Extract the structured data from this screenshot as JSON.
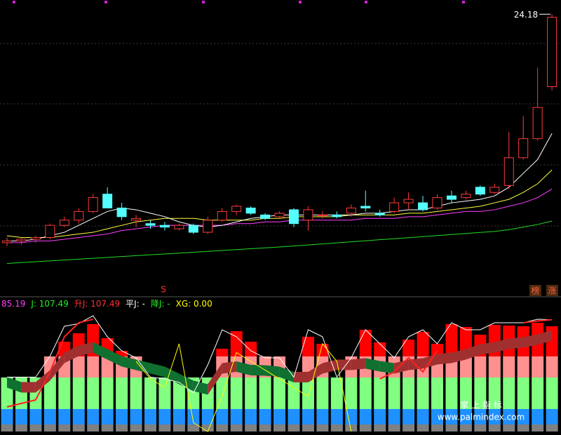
{
  "chart_data": [
    {
      "type": "candlestick",
      "ylim": [
        8,
        25
      ],
      "up_color": "#ff3b3b",
      "down_color": "#54ffff",
      "open": [
        11.0,
        11.1,
        11.2,
        11.3,
        12.0,
        12.3,
        12.8,
        13.8,
        13.0,
        12.3,
        12.1,
        12.0,
        11.8,
        12.0,
        11.6,
        12.3,
        12.8,
        13.0,
        12.6,
        12.5,
        12.9,
        12.3,
        12.6,
        12.6,
        12.7,
        13.1,
        12.7,
        12.8,
        13.3,
        13.3,
        13.0,
        13.7,
        13.6,
        14.2,
        13.9,
        14.3,
        15.9,
        17.0,
        20.0
      ],
      "high": [
        11.3,
        11.3,
        11.4,
        12.1,
        12.5,
        13.0,
        13.8,
        14.2,
        13.3,
        12.6,
        12.3,
        12.2,
        12.1,
        12.1,
        12.5,
        13.0,
        13.2,
        13.1,
        12.7,
        12.8,
        13.0,
        13.1,
        12.8,
        12.8,
        13.2,
        14.0,
        12.9,
        13.6,
        13.9,
        13.7,
        13.8,
        14.0,
        14.0,
        14.3,
        14.4,
        17.4,
        18.3,
        21.1,
        24.18
      ],
      "low": [
        10.8,
        10.9,
        11.0,
        11.2,
        11.9,
        12.1,
        12.7,
        13.0,
        12.3,
        11.9,
        11.8,
        11.7,
        11.7,
        11.5,
        11.5,
        12.2,
        12.6,
        12.6,
        12.3,
        12.4,
        11.9,
        11.7,
        12.4,
        12.4,
        12.5,
        12.8,
        12.5,
        12.7,
        12.9,
        12.8,
        12.9,
        13.3,
        13.5,
        13.7,
        13.8,
        14.1,
        15.8,
        16.9,
        19.8
      ],
      "close": [
        11.1,
        11.2,
        11.3,
        12.0,
        12.3,
        12.8,
        13.6,
        13.0,
        12.5,
        12.4,
        12.0,
        11.9,
        12.0,
        11.6,
        12.3,
        12.8,
        13.1,
        12.7,
        12.4,
        12.7,
        12.1,
        12.9,
        12.6,
        12.5,
        13.0,
        13.0,
        12.6,
        13.3,
        13.5,
        12.9,
        13.6,
        13.5,
        13.8,
        13.8,
        14.2,
        15.9,
        17.0,
        18.8,
        24.0
      ],
      "lines": [
        {
          "color": "#ffffff",
          "values": [
            11.1,
            11.1,
            11.2,
            11.4,
            11.6,
            12.0,
            12.4,
            12.8,
            13.0,
            12.9,
            12.7,
            12.5,
            12.2,
            12.0,
            11.9,
            12.0,
            12.2,
            12.4,
            12.5,
            12.6,
            12.6,
            12.6,
            12.6,
            12.6,
            12.6,
            12.7,
            12.7,
            12.8,
            12.9,
            12.9,
            13.1,
            13.3,
            13.4,
            13.5,
            13.7,
            14.2,
            15.0,
            15.8,
            17.3
          ]
        },
        {
          "color": "#ffff40",
          "values": [
            11.4,
            11.3,
            11.3,
            11.3,
            11.4,
            11.5,
            11.6,
            11.8,
            12.0,
            12.2,
            12.3,
            12.4,
            12.4,
            12.4,
            12.3,
            12.3,
            12.3,
            12.3,
            12.4,
            12.4,
            12.5,
            12.5,
            12.5,
            12.5,
            12.6,
            12.6,
            12.6,
            12.6,
            12.7,
            12.7,
            12.8,
            12.9,
            13.0,
            13.1,
            13.3,
            13.5,
            13.9,
            14.4,
            15.2
          ]
        },
        {
          "color": "#ff40ff",
          "values": [
            11.0,
            11.0,
            11.1,
            11.1,
            11.2,
            11.3,
            11.4,
            11.5,
            11.7,
            11.8,
            11.9,
            12.0,
            12.0,
            12.0,
            12.0,
            12.0,
            12.1,
            12.1,
            12.2,
            12.2,
            12.3,
            12.3,
            12.3,
            12.3,
            12.3,
            12.4,
            12.4,
            12.4,
            12.5,
            12.5,
            12.6,
            12.7,
            12.8,
            12.8,
            12.9,
            13.1,
            13.3,
            13.6,
            14.1
          ]
        },
        {
          "color": "#22dd22",
          "values": [
            9.8,
            9.85,
            9.9,
            9.95,
            10.0,
            10.05,
            10.1,
            10.15,
            10.2,
            10.25,
            10.3,
            10.35,
            10.4,
            10.45,
            10.5,
            10.55,
            10.6,
            10.65,
            10.7,
            10.75,
            10.81,
            10.87,
            10.93,
            10.99,
            11.05,
            11.11,
            11.17,
            11.23,
            11.29,
            11.35,
            11.41,
            11.47,
            11.53,
            11.59,
            11.65,
            11.75,
            11.9,
            12.05,
            12.25
          ]
        }
      ],
      "signal": "S",
      "badges": [
        "榜",
        "涨"
      ]
    },
    {
      "type": "indicator",
      "ylim": [
        -20,
        120
      ],
      "header": [
        {
          "label": "85.19",
          "color": "#ff40ff"
        },
        {
          "label": "J: 107.49",
          "color": "#22ee22"
        },
        {
          "label": "升J: 107.49",
          "color": "#ff3030"
        },
        {
          "label": "平J: -",
          "color": "#ffffff"
        },
        {
          "label": "降J: -",
          "color": "#22ee22"
        },
        {
          "label": "XG: 0.00",
          "color": "#ffff00"
        }
      ],
      "bands": [
        {
          "value": -12,
          "color": "#808080"
        },
        {
          "value": 5.6,
          "color": "#1e90ff"
        },
        {
          "value": 41.6,
          "color": "#80ff80"
        },
        {
          "value": 65.6,
          "color": "#ff9090"
        }
      ],
      "top_color": "#ff0000",
      "bars": [
        41.6,
        41.6,
        41.6,
        65.6,
        82.4,
        92,
        102.4,
        86.4,
        72,
        65.6,
        41.6,
        41.6,
        41.6,
        41.6,
        41.6,
        74.4,
        94.4,
        82.4,
        65.6,
        65.6,
        41.6,
        88,
        80,
        41.6,
        65.6,
        96,
        81.6,
        65.6,
        84.8,
        93.6,
        80,
        102.4,
        99.2,
        90.4,
        101.6,
        100.8,
        100,
        104,
        100
      ],
      "ribbon": {
        "rise_color": "#a03030",
        "fall_color": "#107030",
        "upper": [
          42,
          36.4,
          36.4,
          50,
          70,
          78,
          82,
          74,
          66,
          62,
          58,
          54,
          46,
          38,
          34,
          58,
          60,
          56,
          55.6,
          54,
          48,
          48,
          58,
          62,
          62,
          63.6,
          60.4,
          58,
          62,
          63.6,
          68.4,
          70,
          74,
          79.6,
          82,
          86,
          87.6,
          90.8,
          95.6
        ],
        "lower": [
          30,
          24.4,
          24.4,
          38,
          58,
          66,
          70,
          62,
          54,
          50,
          46,
          42,
          34,
          26,
          22,
          46,
          48,
          44,
          43.6,
          42,
          36,
          36,
          46,
          50,
          50,
          51.6,
          48.4,
          46,
          50,
          51.6,
          56.4,
          58,
          62,
          67.6,
          70,
          74,
          75.6,
          78.8,
          83.6
        ]
      },
      "lines": [
        {
          "color": "#ffffff",
          "values": [
            42,
            42,
            42,
            66,
            100,
            103,
            112,
            88,
            72,
            64,
            42,
            40,
            36,
            24,
            56,
            96,
            88,
            72,
            64,
            64,
            42,
            96,
            88,
            42,
            64,
            96,
            80,
            64,
            88,
            96,
            80,
            104,
            96,
            96,
            104,
            104,
            104,
            108,
            107.49
          ]
        },
        {
          "color": "#ff2020",
          "values": [
            8,
            12,
            16,
            48,
            88,
            104,
            108,
            null,
            null,
            null,
            null,
            null,
            null,
            null,
            null,
            null,
            null,
            null,
            null,
            null,
            null,
            null,
            null,
            null,
            null,
            null,
            40,
            48,
            64,
            48,
            72,
            null,
            null,
            null,
            null,
            null,
            104,
            106,
            107.49
          ]
        },
        {
          "color": "#ffff00",
          "values": [
            null,
            null,
            null,
            null,
            null,
            null,
            null,
            null,
            null,
            60,
            40,
            30,
            80,
            -10,
            -20,
            20,
            70,
            60,
            50,
            40,
            30,
            20,
            80,
            60,
            -20,
            null,
            null,
            null,
            null,
            null,
            null,
            null,
            null,
            null,
            null,
            null,
            null,
            null,
            null
          ]
        }
      ]
    }
  ],
  "watermark": {
    "title": "掌 上 指 标",
    "url": "www.palmindex.com"
  }
}
